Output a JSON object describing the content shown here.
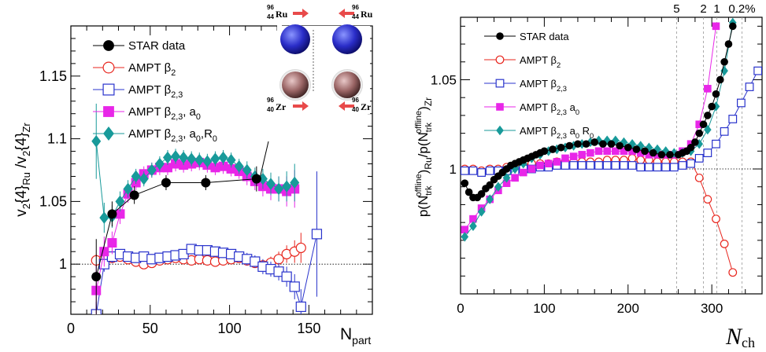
{
  "chart_data": [
    {
      "type": "scatter",
      "xlabel": "N",
      "xlabel_sub": "part",
      "ylabel_parts": [
        "v",
        "2",
        "{4}",
        "Ru",
        " /v",
        "2",
        "{4}",
        "Zr"
      ],
      "xlim": [
        0,
        190
      ],
      "ylim": [
        0.96,
        1.19
      ],
      "xticks": [
        0,
        50,
        100,
        150
      ],
      "yticks": [
        1,
        1.05,
        1.1,
        1.15
      ],
      "ytick_labels": [
        "1",
        "1.05",
        "1.1",
        "1.15"
      ],
      "reference_line": 1,
      "inset": {
        "ru_label": {
          "A": "96",
          "Z": "44",
          "sym": "Ru"
        },
        "zr_label": {
          "A": "96",
          "Z": "40",
          "sym": "Zr"
        }
      },
      "series": [
        {
          "name": "STAR data",
          "name_sub": "",
          "name_tail": "",
          "marker": "circle-filled",
          "color": "#000000",
          "x": [
            16,
            26,
            40,
            60,
            85,
            117
          ],
          "y": [
            0.99,
            1.04,
            1.055,
            1.065,
            1.065,
            1.068
          ],
          "err": [
            0.03,
            0.01,
            0.007,
            0.006,
            0.006,
            0.01
          ]
        },
        {
          "name": "AMPT β",
          "name_sub": "2",
          "name_tail": "",
          "marker": "circle-open",
          "color": "#e8251d",
          "x": [
            16,
            21,
            26,
            31,
            36,
            41,
            46,
            51,
            56,
            61,
            66,
            71,
            76,
            81,
            86,
            91,
            96,
            101,
            106,
            111,
            116,
            121,
            126,
            131,
            136,
            141,
            145
          ],
          "y": [
            1.003,
            1.004,
            1.005,
            1.006,
            1.004,
            1.002,
            1.0,
            1.001,
            1.003,
            1.004,
            1.005,
            1.004,
            1.003,
            1.004,
            1.003,
            1.002,
            1.003,
            1.004,
            1.005,
            1.003,
            1.001,
            0.999,
            1.001,
            1.004,
            1.008,
            1.01,
            1.013
          ],
          "err": [
            0.005,
            0.004,
            0.004,
            0.004,
            0.004,
            0.003,
            0.003,
            0.003,
            0.003,
            0.003,
            0.003,
            0.003,
            0.003,
            0.003,
            0.003,
            0.003,
            0.003,
            0.003,
            0.003,
            0.004,
            0.004,
            0.004,
            0.005,
            0.006,
            0.007,
            0.009,
            0.012
          ]
        },
        {
          "name": "AMPT β",
          "name_sub": "2,3",
          "name_tail": "",
          "marker": "square-open",
          "color": "#2933cc",
          "x": [
            16,
            21,
            26,
            31,
            36,
            41,
            46,
            51,
            56,
            61,
            66,
            71,
            76,
            81,
            86,
            91,
            96,
            101,
            106,
            111,
            116,
            121,
            126,
            131,
            136,
            141,
            145,
            155
          ],
          "y": [
            0.96,
            1.0,
            1.006,
            1.008,
            1.006,
            1.005,
            1.006,
            1.004,
            1.005,
            1.006,
            1.007,
            1.008,
            1.012,
            1.011,
            1.011,
            1.01,
            1.009,
            1.008,
            1.006,
            1.004,
            1.002,
            0.998,
            0.996,
            0.994,
            0.99,
            0.982,
            0.966,
            1.024
          ],
          "err": [
            0.01,
            0.006,
            0.005,
            0.004,
            0.004,
            0.004,
            0.004,
            0.004,
            0.004,
            0.004,
            0.004,
            0.004,
            0.004,
            0.004,
            0.004,
            0.004,
            0.004,
            0.004,
            0.004,
            0.005,
            0.005,
            0.006,
            0.006,
            0.007,
            0.008,
            0.01,
            0.014,
            0.05
          ]
        },
        {
          "name": "AMPT β",
          "name_sub": "2,3",
          "name_tail": ", a",
          "name_tail_sub": "0",
          "marker": "square-filled",
          "color": "#e826e8",
          "x": [
            16,
            21,
            26,
            31,
            36,
            41,
            46,
            51,
            56,
            61,
            66,
            71,
            76,
            81,
            86,
            91,
            96,
            101,
            106,
            111,
            116,
            121,
            126,
            131,
            136,
            141
          ],
          "y": [
            0.979,
            1.01,
            1.017,
            1.04,
            1.056,
            1.065,
            1.072,
            1.075,
            1.077,
            1.077,
            1.08,
            1.079,
            1.08,
            1.081,
            1.079,
            1.077,
            1.078,
            1.076,
            1.074,
            1.07,
            1.066,
            1.062,
            1.06,
            1.06,
            1.058,
            1.06
          ],
          "err": [
            0.02,
            0.012,
            0.009,
            0.008,
            0.007,
            0.006,
            0.006,
            0.006,
            0.006,
            0.006,
            0.006,
            0.006,
            0.006,
            0.006,
            0.006,
            0.006,
            0.006,
            0.006,
            0.006,
            0.007,
            0.007,
            0.008,
            0.009,
            0.01,
            0.012,
            0.015
          ]
        },
        {
          "name": "AMPT β",
          "name_sub": "2,3",
          "name_tail": ", a",
          "name_tail_sub": "0",
          "name_tail2": ",R",
          "name_tail2_sub": "0",
          "marker": "diamond-filled",
          "color": "#189a9a",
          "x": [
            16,
            21,
            26,
            31,
            36,
            41,
            46,
            51,
            56,
            61,
            66,
            71,
            76,
            81,
            86,
            91,
            96,
            101,
            106,
            111,
            116,
            121,
            126,
            131,
            136,
            141
          ],
          "y": [
            1.098,
            1.037,
            1.038,
            1.05,
            1.06,
            1.07,
            1.068,
            1.075,
            1.08,
            1.085,
            1.086,
            1.085,
            1.084,
            1.083,
            1.082,
            1.084,
            1.085,
            1.083,
            1.078,
            1.075,
            1.07,
            1.068,
            1.064,
            1.06,
            1.062,
            1.065
          ],
          "err": [
            0.03,
            0.012,
            0.009,
            0.008,
            0.007,
            0.006,
            0.006,
            0.006,
            0.006,
            0.006,
            0.006,
            0.006,
            0.006,
            0.006,
            0.006,
            0.006,
            0.006,
            0.006,
            0.006,
            0.007,
            0.007,
            0.008,
            0.009,
            0.01,
            0.012,
            0.015
          ]
        }
      ]
    },
    {
      "type": "scatter",
      "xlabel": "N",
      "xlabel_sub": "ch",
      "ylabel_parts": [
        "p(N",
        "trk",
        "offline",
        ")",
        "Ru",
        "/p(N",
        "trk",
        "offline",
        ")",
        "Zr"
      ],
      "xlim": [
        0,
        360
      ],
      "ylim": [
        0.93,
        1.085
      ],
      "xticks": [
        0,
        100,
        200,
        300
      ],
      "yticks": [
        1,
        1.05
      ],
      "ytick_labels": [
        "1",
        "1.05"
      ],
      "reference_line": 1,
      "centrality_lines": [
        {
          "label": "5",
          "x": 258
        },
        {
          "label": "2",
          "x": 290
        },
        {
          "label": "1",
          "x": 306
        },
        {
          "label": "0.2%",
          "x": 336
        }
      ],
      "series": [
        {
          "name": "STAR data",
          "name_sub": "",
          "name_tail": "",
          "marker": "circle-filled",
          "color": "#000000",
          "x": [
            5,
            10,
            15,
            20,
            25,
            30,
            35,
            40,
            45,
            50,
            55,
            60,
            65,
            70,
            75,
            80,
            85,
            90,
            95,
            100,
            110,
            120,
            130,
            140,
            150,
            160,
            170,
            180,
            190,
            200,
            210,
            220,
            230,
            240,
            250,
            260,
            265,
            270,
            275,
            280,
            285,
            290,
            295,
            300,
            305,
            310,
            315,
            320,
            325
          ],
          "y": [
            0.992,
            0.987,
            0.984,
            0.984,
            0.986,
            0.989,
            0.991,
            0.994,
            0.996,
            0.998,
            1.0,
            1.002,
            1.003,
            1.004,
            1.005,
            1.006,
            1.007,
            1.008,
            1.009,
            1.01,
            1.011,
            1.012,
            1.013,
            1.014,
            1.014,
            1.015,
            1.014,
            1.014,
            1.013,
            1.012,
            1.011,
            1.01,
            1.009,
            1.008,
            1.008,
            1.008,
            1.009,
            1.01,
            1.012,
            1.015,
            1.02,
            1.025,
            1.03,
            1.035,
            1.042,
            1.05,
            1.06,
            1.07,
            1.08
          ]
        },
        {
          "name": "AMPT β",
          "name_sub": "2",
          "name_tail": "",
          "marker": "circle-open",
          "color": "#e8251d",
          "x": [
            5,
            15,
            25,
            35,
            45,
            55,
            65,
            75,
            85,
            95,
            105,
            115,
            125,
            135,
            145,
            155,
            165,
            175,
            185,
            195,
            205,
            215,
            225,
            235,
            245,
            255,
            265,
            275,
            285,
            295,
            305,
            315,
            325
          ],
          "y": [
            1.0,
            1.0,
            0.999,
            1.0,
            1.0,
            1.001,
            1.001,
            1.002,
            1.003,
            1.003,
            1.003,
            1.004,
            1.004,
            1.004,
            1.004,
            1.004,
            1.004,
            1.005,
            1.005,
            1.005,
            1.006,
            1.005,
            1.005,
            1.004,
            1.004,
            1.004,
            1.004,
            1.004,
            0.995,
            0.983,
            0.972,
            0.958,
            0.942
          ]
        },
        {
          "name": "AMPT β",
          "name_sub": "2,3",
          "name_tail": "",
          "marker": "square-open",
          "color": "#2933cc",
          "x": [
            5,
            15,
            25,
            35,
            45,
            55,
            65,
            75,
            85,
            95,
            105,
            115,
            125,
            135,
            145,
            155,
            165,
            175,
            185,
            195,
            205,
            215,
            225,
            235,
            245,
            255,
            265,
            275,
            285,
            295,
            305,
            315,
            325,
            335,
            345,
            355
          ],
          "y": [
            0.999,
            0.999,
            0.998,
            0.999,
            0.999,
            0.999,
            0.999,
            1.0,
            1.0,
            1.001,
            1.001,
            1.002,
            1.002,
            1.002,
            1.002,
            1.002,
            1.002,
            1.002,
            1.002,
            1.002,
            1.002,
            1.001,
            1.001,
            1.001,
            1.001,
            1.001,
            1.002,
            1.003,
            1.006,
            1.009,
            1.014,
            1.021,
            1.028,
            1.037,
            1.046,
            1.055
          ]
        },
        {
          "name": "AMPT β",
          "name_sub": "2,3",
          "name_tail": " a",
          "name_tail_sub": "0",
          "marker": "square-filled",
          "color": "#e826e8",
          "x": [
            5,
            15,
            25,
            35,
            45,
            55,
            65,
            75,
            85,
            95,
            105,
            115,
            125,
            135,
            145,
            155,
            165,
            175,
            185,
            195,
            205,
            215,
            225,
            235,
            245,
            255,
            265,
            275,
            285,
            295,
            305
          ],
          "y": [
            0.966,
            0.972,
            0.978,
            0.983,
            0.988,
            0.992,
            0.995,
            0.998,
            1.0,
            1.002,
            1.003,
            1.004,
            1.006,
            1.007,
            1.008,
            1.009,
            1.01,
            1.01,
            1.01,
            1.01,
            1.01,
            1.009,
            1.008,
            1.008,
            1.008,
            1.008,
            1.01,
            1.014,
            1.025,
            1.045,
            1.08
          ]
        },
        {
          "name": "AMPT β",
          "name_sub": "2,3",
          "name_tail": " a",
          "name_tail_sub": "0",
          "name_tail2": " R",
          "name_tail2_sub": "0",
          "marker": "diamond-filled",
          "color": "#189a9a",
          "x": [
            5,
            15,
            25,
            35,
            45,
            55,
            65,
            75,
            85,
            95,
            105,
            115,
            125,
            135,
            145,
            155,
            165,
            175,
            185,
            195,
            205,
            215,
            225,
            235,
            245,
            255,
            265,
            275,
            285,
            295,
            305,
            315,
            325
          ],
          "y": [
            0.962,
            0.968,
            0.976,
            0.983,
            0.99,
            0.995,
            1.0,
            1.003,
            1.006,
            1.008,
            1.01,
            1.011,
            1.012,
            1.013,
            1.014,
            1.015,
            1.016,
            1.016,
            1.016,
            1.015,
            1.014,
            1.013,
            1.012,
            1.011,
            1.01,
            1.009,
            1.009,
            1.01,
            1.014,
            1.022,
            1.035,
            1.055,
            1.082
          ]
        }
      ]
    }
  ]
}
